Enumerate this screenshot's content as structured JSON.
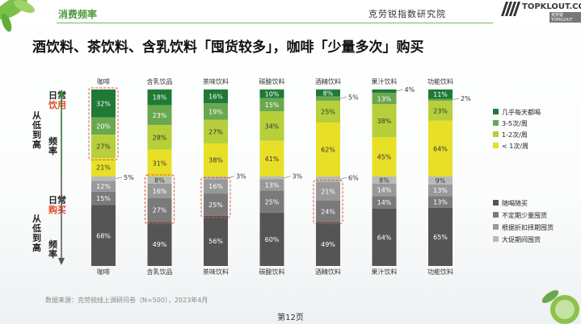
{
  "header": {
    "section": "消费频率",
    "institute": "克劳锐指数研究院",
    "brand": "TOPKLOUT.COM",
    "brand_sub": "克劳锐 TOPKLOUT"
  },
  "headline": "酒饮料、茶饮料、含乳饮料「囤货较多」，咖啡「少量多次」购买",
  "side_labels": {
    "drink_prefix": "日常",
    "drink_em": "饮用",
    "buy_prefix": "日常",
    "buy_em": "购买",
    "line2": "从低到高",
    "line3": "频率"
  },
  "chart_data": {
    "type": "bar",
    "layout": "stacked-100, two panels",
    "categories": [
      "咖啡",
      "含乳饮品",
      "茶味饮料",
      "碳酸饮料",
      "酒精饮料",
      "果汁饮料",
      "功能饮料"
    ],
    "panels": [
      {
        "name": "日常饮用从低到高频率",
        "series": [
          {
            "name": "几乎每天都喝",
            "color": "#1f7a36",
            "values": [
              32,
              18,
              16,
              10,
              8,
              4,
              11
            ]
          },
          {
            "name": "3-5次/周",
            "color": "#6aa84f",
            "values": [
              20,
              23,
              19,
              15,
              5,
              13,
              2
            ]
          },
          {
            "name": "1-2次/周",
            "color": "#b7cf3a",
            "values": [
              27,
              28,
              27,
              34,
              25,
              38,
              23
            ]
          },
          {
            "name": "< 1次/周",
            "color": "#e8e027",
            "values": [
              21,
              31,
              38,
              41,
              62,
              45,
              64
            ]
          }
        ]
      },
      {
        "name": "日常购买从低到高频率",
        "series": [
          {
            "name": "大促期间囤货",
            "color": "#b9b9b9",
            "values": [
              5,
              8,
              3,
              3,
              6,
              8,
              9
            ]
          },
          {
            "name": "根据折扣择期囤货",
            "color": "#999999",
            "values": [
              12,
              16,
              16,
              13,
              21,
              14,
              13
            ]
          },
          {
            "name": "不定期少量囤货",
            "color": "#7a7a7a",
            "values": [
              15,
              27,
              25,
              25,
              24,
              14,
              13
            ]
          },
          {
            "name": "随喝随买",
            "color": "#555555",
            "values": [
              68,
              49,
              56,
              60,
              49,
              64,
              65
            ]
          }
        ]
      }
    ],
    "legend": [
      {
        "name": "几乎每天都喝",
        "color": "#1f7a36"
      },
      {
        "name": "3-5次/周",
        "color": "#6aa84f"
      },
      {
        "name": "1-2次/周",
        "color": "#b7cf3a"
      },
      {
        "name": "< 1次/周",
        "color": "#e8e027"
      },
      {
        "name": "随喝随买",
        "color": "#555555"
      },
      {
        "name": "不定期少量囤货",
        "color": "#7a7a7a"
      },
      {
        "name": "根据折扣择期囤货",
        "color": "#999999"
      },
      {
        "name": "大促期间囤货",
        "color": "#b9b9b9"
      }
    ],
    "highlights": [
      {
        "category": "咖啡",
        "panel": 0,
        "series": [
          "几乎每天都喝",
          "3-5次/周",
          "1-2次/周"
        ]
      },
      {
        "category": "含乳饮品",
        "panel": 1,
        "series": [
          "大促期间囤货",
          "根据折扣择期囤货",
          "不定期少量囤货"
        ]
      },
      {
        "category": "茶味饮料",
        "panel": 1,
        "series": [
          "根据折扣择期囤货",
          "不定期少量囤货"
        ]
      },
      {
        "category": "酒精饮料",
        "panel": 1,
        "series": [
          "根据折扣择期囤货",
          "不定期少量囤货"
        ]
      }
    ],
    "callouts": [
      {
        "category": "咖啡",
        "panel": 1,
        "series": "大促期间囤货",
        "text": "5%"
      },
      {
        "category": "茶味饮料",
        "panel": 1,
        "series": "大促期间囤货",
        "text": "3%"
      },
      {
        "category": "碳酸饮料",
        "panel": 1,
        "series": "大促期间囤货",
        "text": "3%"
      },
      {
        "category": "酒精饮料",
        "panel": 1,
        "series": "大促期间囤货",
        "text": "6%"
      },
      {
        "category": "酒精饮料",
        "panel": 0,
        "series": "3-5次/周",
        "text": "5%"
      },
      {
        "category": "果汁饮料",
        "panel": 0,
        "series": "几乎每天都喝",
        "text": "4%"
      },
      {
        "category": "功能饮料",
        "panel": 0,
        "series": "3-5次/周",
        "text": "2%"
      }
    ],
    "data_labels": [
      [
        "32%",
        "20%",
        "27%",
        "21%",
        "12%",
        "15%",
        "68%"
      ],
      [
        "18%",
        "23%",
        "28%",
        "31%",
        "8%",
        "16%",
        "27%",
        "49%"
      ],
      [
        "16%",
        "19%",
        "27%",
        "38%",
        "16%",
        "25%",
        "56%"
      ],
      [
        "10%",
        "15%",
        "34%",
        "41%",
        "13%",
        "25%",
        "60%"
      ],
      [
        "8%",
        "25%",
        "62%",
        "21%",
        "24%",
        "49%"
      ],
      [
        "13%",
        "38%",
        "45%",
        "8%",
        "14%",
        "14%",
        "64%"
      ],
      [
        "11%",
        "23%",
        "64%",
        "9%",
        "13%",
        "13%",
        "65%"
      ]
    ]
  },
  "footer": {
    "source": "数据来源：克劳锐线上调研问卷（N=500），2023年4月",
    "page": "第12页"
  }
}
